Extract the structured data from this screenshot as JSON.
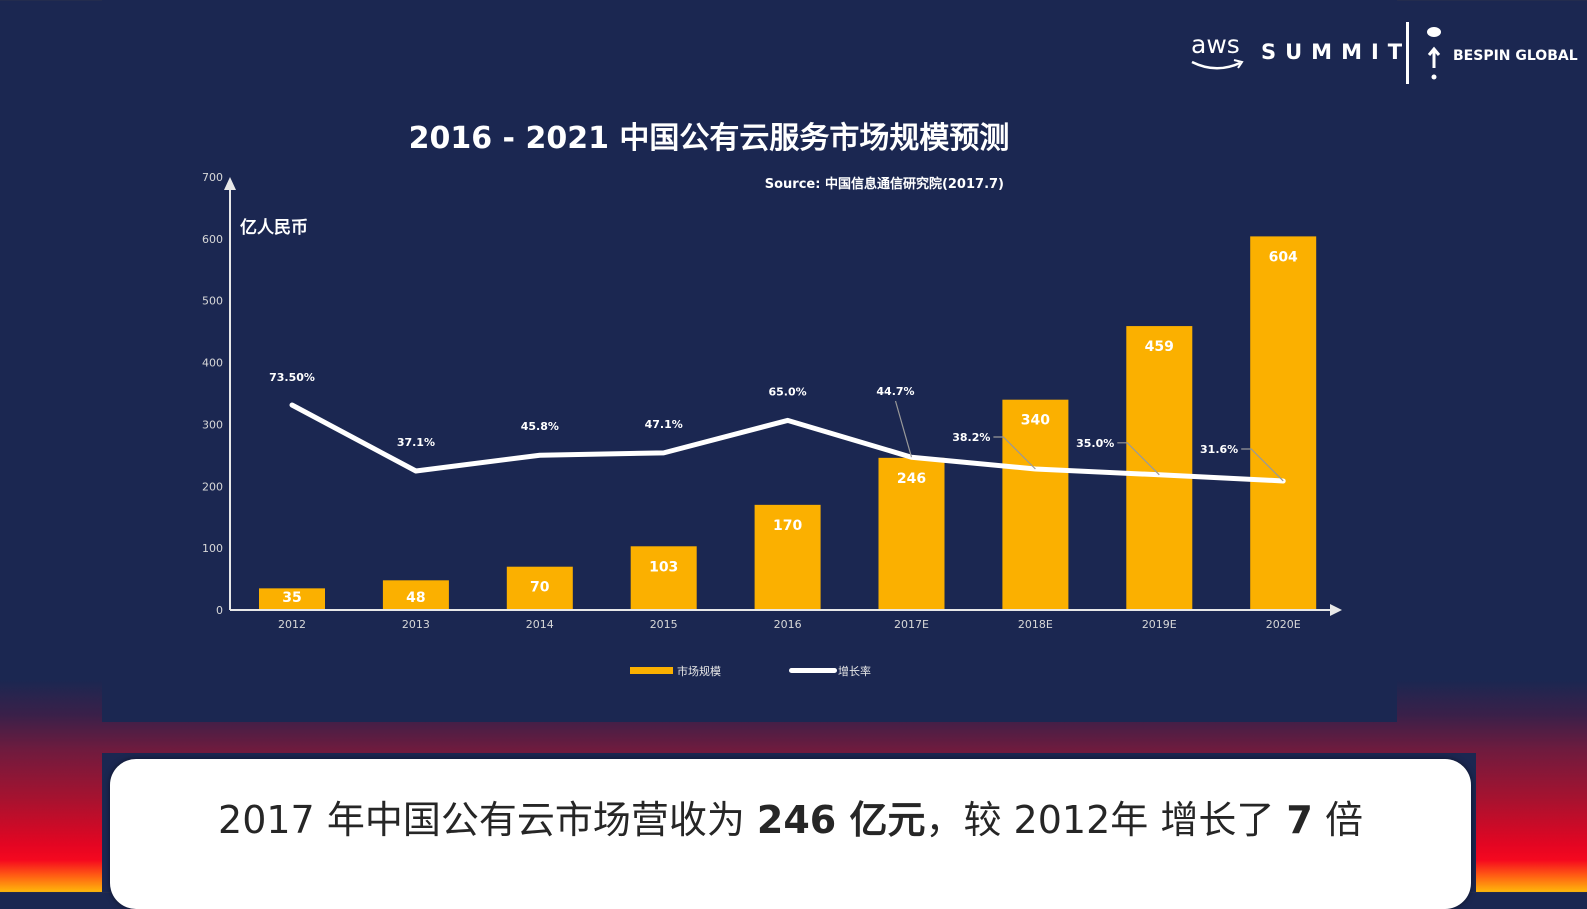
{
  "logos": {
    "aws": "aws",
    "summit": "SUMMIT",
    "partner": "BESPIN GLOBAL"
  },
  "caption": {
    "part1": "2017 年中国公有云市场营收为 ",
    "bold1": "246 亿元",
    "part2": "，较 2012年 增长了 ",
    "bold2": "7",
    "part3": " 倍"
  },
  "colors": {
    "background": "#1b2751",
    "bar": "#fbb000",
    "line": "#ffffff"
  },
  "chart_data": {
    "type": "bar",
    "title": "2016 - 2021 中国公有云服务市场规模预测",
    "source": "Source: 中国信息通信研究院(2017.7)",
    "ylabel": "亿人民币",
    "ylim": [
      0,
      700
    ],
    "yticks": [
      "0",
      "100",
      "200",
      "300",
      "400",
      "500",
      "600",
      "700"
    ],
    "categories": [
      "2012",
      "2013",
      "2014",
      "2015",
      "2016",
      "2017E",
      "2018E",
      "2019E",
      "2020E"
    ],
    "series": [
      {
        "name": "市场规模",
        "type": "bar",
        "values": [
          35,
          48,
          70,
          103,
          170,
          246,
          340,
          459,
          604
        ],
        "labels": [
          "35",
          "48",
          "70",
          "103",
          "170",
          "246",
          "340",
          "459",
          "604"
        ]
      },
      {
        "name": "增长率",
        "type": "line",
        "values": [
          73.5,
          37.1,
          45.8,
          47.1,
          65.0,
          44.7,
          38.2,
          35.0,
          31.6
        ],
        "labels": [
          "73.50%",
          "37.1%",
          "45.8%",
          "47.1%",
          "65.0%",
          "44.7%",
          "38.2%",
          "35.0%",
          "31.6%"
        ]
      }
    ],
    "legend": "bottom",
    "grid": false
  }
}
